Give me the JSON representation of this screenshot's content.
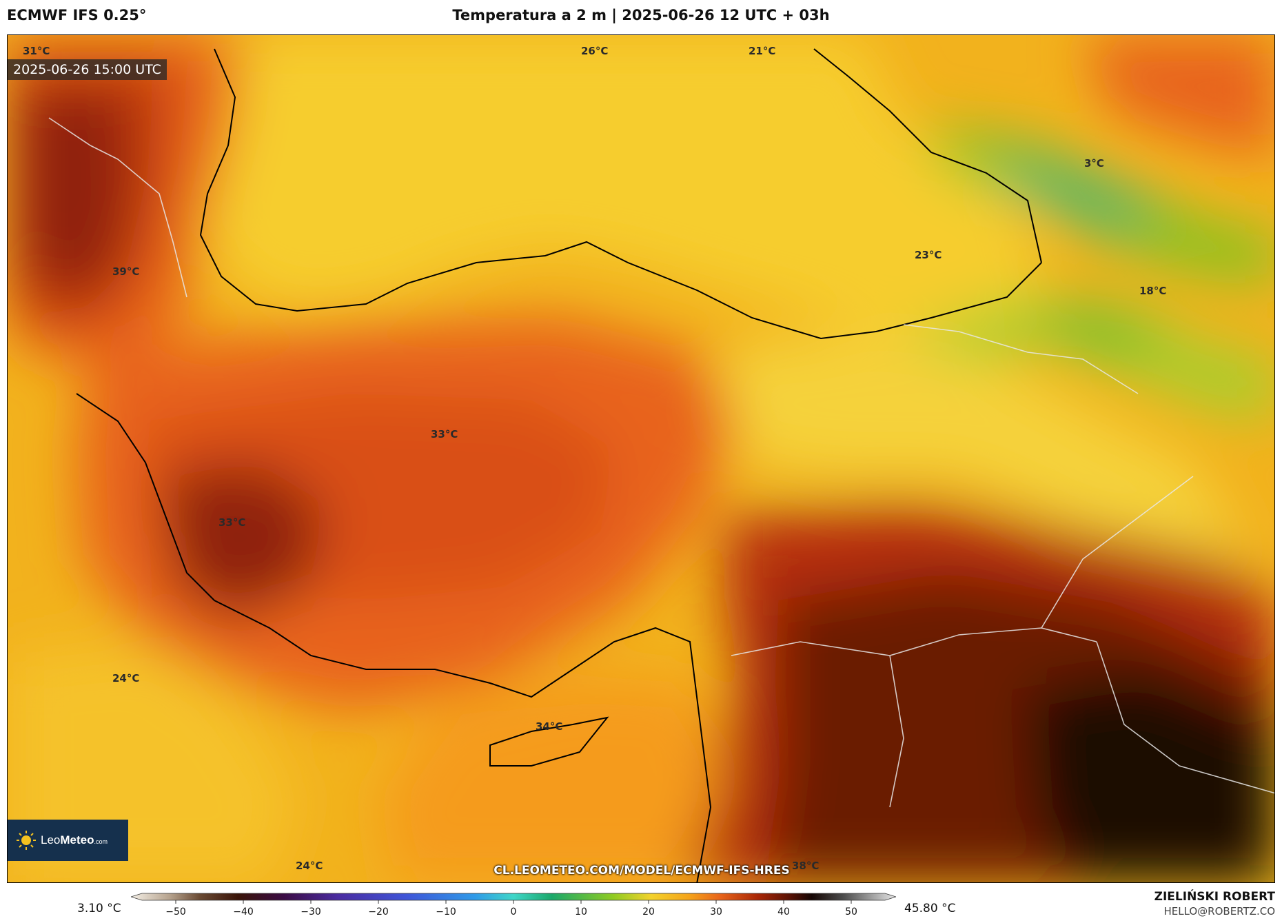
{
  "header": {
    "model": "ECMWF IFS 0.25°",
    "title": "Temperatura a 2 m | 2025-06-26 12 UTC + 03h"
  },
  "map": {
    "valid_time": "2025-06-26 15:00 UTC",
    "source_url": "CL.LEOMETEO.COM/MODEL/ECMWF-IFS-HRES",
    "temperature_labels": [
      {
        "text": "31°C"
      },
      {
        "text": "26°C"
      },
      {
        "text": "21°C"
      },
      {
        "text": "3°C"
      },
      {
        "text": "23°C"
      },
      {
        "text": "18°C"
      },
      {
        "text": "39°C"
      },
      {
        "text": "33°C"
      },
      {
        "text": "33°C"
      },
      {
        "text": "24°C"
      },
      {
        "text": "34°C"
      },
      {
        "text": "24°C"
      },
      {
        "text": "38°C"
      }
    ]
  },
  "logo": {
    "brand_light": "Leo",
    "brand_bold": "Meteo",
    "suffix": ".com"
  },
  "colorbar": {
    "min_label": "3.10 °C",
    "max_label": "45.80 °C",
    "ticks": [
      "−50",
      "−40",
      "−30",
      "−20",
      "−10",
      "0",
      "10",
      "20",
      "30",
      "40",
      "50"
    ],
    "range": [
      -55,
      55
    ]
  },
  "author": {
    "name": "ZIELIŃSKI ROBERT",
    "email": "HELLO@ROBERTZ.CO"
  },
  "colors": {
    "sea_yellow": "#f6cd2e",
    "hot_orange": "#e8641a",
    "very_hot": "#8a1d05",
    "extreme": "#1b0a04",
    "cool_green": "#7ac520"
  }
}
